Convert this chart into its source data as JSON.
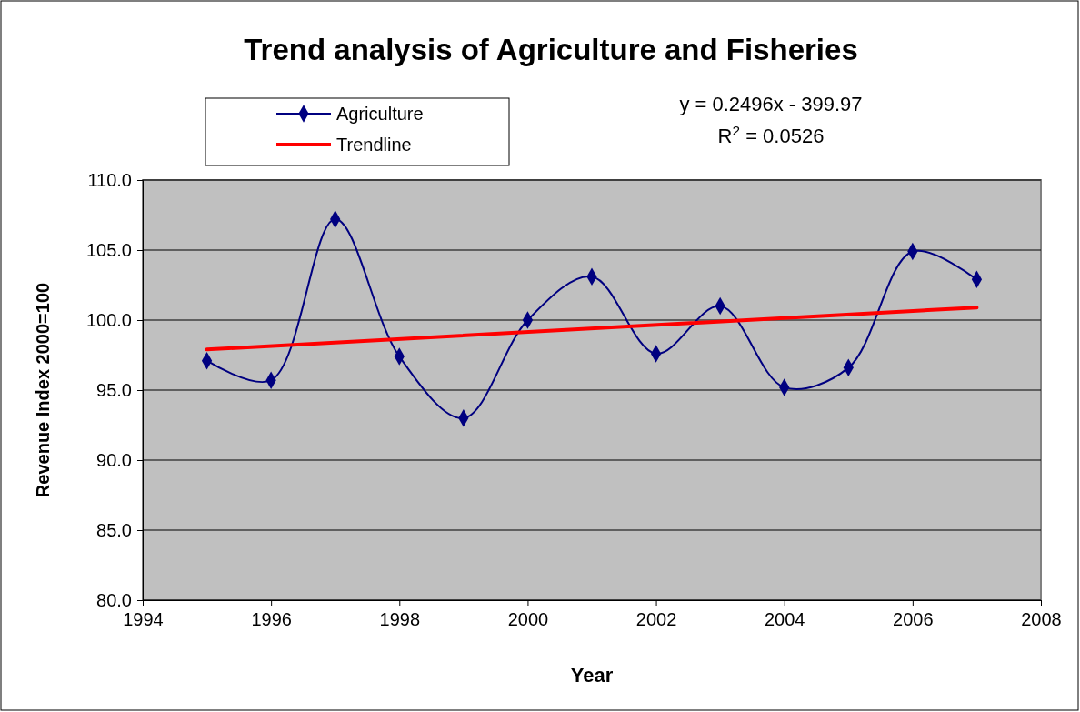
{
  "chart_data": {
    "type": "line",
    "title": "Trend analysis of Agriculture and Fisheries",
    "xlabel": "Year",
    "ylabel": "Revenue Index 2000=100",
    "annotations": [
      "y = 0.2496x - 399.97",
      "R$^{2}$ = 0.0526"
    ],
    "x": [
      1995,
      1996,
      1997,
      1998,
      1999,
      2000,
      2001,
      2002,
      2003,
      2004,
      2005,
      2006,
      2007
    ],
    "series": [
      {
        "name": "Agriculture",
        "color": "#000080",
        "marker": "diamond",
        "values": [
          97.1,
          95.7,
          107.2,
          97.4,
          93.0,
          100.0,
          103.1,
          97.6,
          101.0,
          95.2,
          96.6,
          104.9,
          102.9
        ]
      },
      {
        "name": "Trendline",
        "color": "#ff0000",
        "marker": "none",
        "x": [
          1995,
          2007
        ],
        "values": [
          97.9,
          100.9
        ]
      }
    ],
    "xlim": [
      1994,
      2008
    ],
    "xticks": [
      1994,
      1996,
      1998,
      2000,
      2002,
      2004,
      2006,
      2008
    ],
    "ylim": [
      80,
      110
    ],
    "yticks": [
      {
        "value": 80,
        "label": "80.0"
      },
      {
        "value": 85,
        "label": "85.0"
      },
      {
        "value": 90,
        "label": "90.0"
      },
      {
        "value": 95,
        "label": "95.0"
      },
      {
        "value": 100,
        "label": "100.0"
      },
      {
        "value": 105,
        "label": "105.0"
      },
      {
        "value": 110,
        "label": "110.0"
      }
    ],
    "grid": "y",
    "legend": "top left",
    "line_style": "solid"
  }
}
